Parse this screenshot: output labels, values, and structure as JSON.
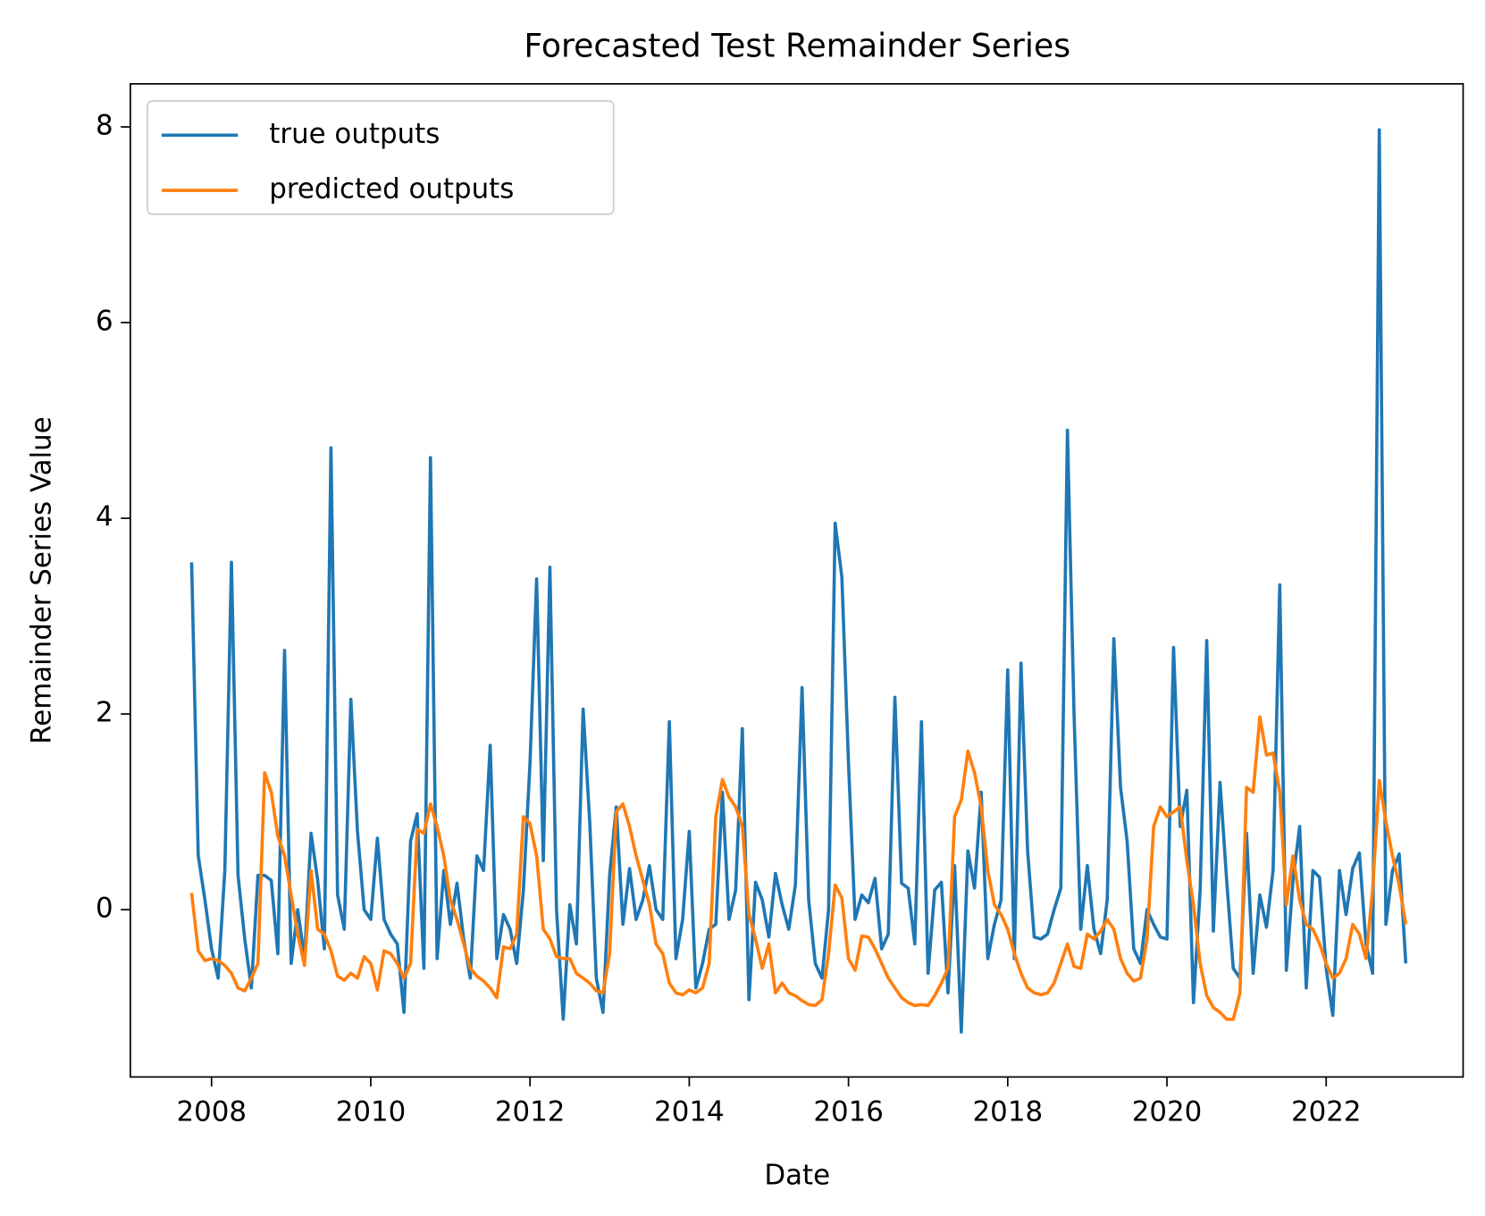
{
  "chart_data": {
    "type": "line",
    "title": "Forecasted Test Remainder Series",
    "xlabel": "Date",
    "ylabel": "Remainder Series Value",
    "x": [
      2007.75,
      2007.833,
      2007.917,
      2008,
      2008.083,
      2008.167,
      2008.25,
      2008.333,
      2008.417,
      2008.5,
      2008.583,
      2008.667,
      2008.75,
      2008.833,
      2008.917,
      2009,
      2009.083,
      2009.167,
      2009.25,
      2009.333,
      2009.417,
      2009.5,
      2009.583,
      2009.667,
      2009.75,
      2009.833,
      2009.917,
      2010,
      2010.083,
      2010.167,
      2010.25,
      2010.333,
      2010.417,
      2010.5,
      2010.583,
      2010.667,
      2010.75,
      2010.833,
      2010.917,
      2011,
      2011.083,
      2011.167,
      2011.25,
      2011.333,
      2011.417,
      2011.5,
      2011.583,
      2011.667,
      2011.75,
      2011.833,
      2011.917,
      2012,
      2012.083,
      2012.167,
      2012.25,
      2012.333,
      2012.417,
      2012.5,
      2012.583,
      2012.667,
      2012.75,
      2012.833,
      2012.917,
      2013,
      2013.083,
      2013.167,
      2013.25,
      2013.333,
      2013.417,
      2013.5,
      2013.583,
      2013.667,
      2013.75,
      2013.833,
      2013.917,
      2014,
      2014.083,
      2014.167,
      2014.25,
      2014.333,
      2014.417,
      2014.5,
      2014.583,
      2014.667,
      2014.75,
      2014.833,
      2014.917,
      2015,
      2015.083,
      2015.167,
      2015.25,
      2015.333,
      2015.417,
      2015.5,
      2015.583,
      2015.667,
      2015.75,
      2015.833,
      2015.917,
      2016,
      2016.083,
      2016.167,
      2016.25,
      2016.333,
      2016.417,
      2016.5,
      2016.583,
      2016.667,
      2016.75,
      2016.833,
      2016.917,
      2017,
      2017.083,
      2017.167,
      2017.25,
      2017.333,
      2017.417,
      2017.5,
      2017.583,
      2017.667,
      2017.75,
      2017.833,
      2017.917,
      2018,
      2018.083,
      2018.167,
      2018.25,
      2018.333,
      2018.417,
      2018.5,
      2018.583,
      2018.667,
      2018.75,
      2018.833,
      2018.917,
      2019,
      2019.083,
      2019.167,
      2019.25,
      2019.333,
      2019.417,
      2019.5,
      2019.583,
      2019.667,
      2019.75,
      2019.833,
      2019.917,
      2020,
      2020.083,
      2020.167,
      2020.25,
      2020.333,
      2020.417,
      2020.5,
      2020.583,
      2020.667,
      2020.75,
      2020.833,
      2020.917,
      2021,
      2021.083,
      2021.167,
      2021.25,
      2021.333,
      2021.417,
      2021.5,
      2021.583,
      2021.667,
      2021.75,
      2021.833,
      2021.917,
      2022,
      2022.083,
      2022.167,
      2022.25,
      2022.333,
      2022.417,
      2022.5,
      2022.583,
      2022.667,
      2022.75,
      2022.833,
      2022.917,
      2023
    ],
    "series": [
      {
        "name": "true outputs",
        "color": "#1f77b4",
        "values": [
          3.55,
          0.55,
          0.1,
          -0.4,
          -0.7,
          0.4,
          3.55,
          0.35,
          -0.3,
          -0.8,
          0.35,
          0.35,
          0.3,
          -0.45,
          2.65,
          -0.55,
          0.0,
          -0.5,
          0.78,
          0.3,
          -0.4,
          4.72,
          0.15,
          -0.2,
          2.15,
          0.8,
          0.0,
          -0.1,
          0.73,
          -0.1,
          -0.25,
          -0.35,
          -1.05,
          0.7,
          0.98,
          -0.6,
          4.62,
          -0.5,
          0.4,
          -0.15,
          0.27,
          -0.3,
          -0.7,
          0.55,
          0.4,
          1.68,
          -0.5,
          -0.05,
          -0.2,
          -0.55,
          0.2,
          1.5,
          3.38,
          0.5,
          3.5,
          0.0,
          -1.12,
          0.05,
          -0.35,
          2.05,
          0.9,
          -0.7,
          -1.05,
          0.35,
          1.05,
          -0.15,
          0.42,
          -0.1,
          0.1,
          0.45,
          0.0,
          -0.1,
          1.92,
          -0.5,
          -0.1,
          0.8,
          -0.8,
          -0.55,
          -0.2,
          -0.15,
          1.2,
          -0.1,
          0.2,
          1.85,
          -0.92,
          0.28,
          0.1,
          -0.28,
          0.37,
          0.05,
          -0.2,
          0.25,
          2.27,
          0.1,
          -0.55,
          -0.7,
          0.0,
          3.95,
          3.4,
          1.5,
          -0.1,
          0.15,
          0.07,
          0.32,
          -0.4,
          -0.25,
          2.17,
          0.27,
          0.22,
          -0.35,
          1.92,
          -0.65,
          0.2,
          0.28,
          -0.85,
          0.45,
          -1.25,
          0.6,
          0.22,
          1.2,
          -0.5,
          -0.15,
          0.1,
          2.45,
          -0.5,
          2.52,
          0.6,
          -0.28,
          -0.3,
          -0.25,
          0.0,
          0.22,
          4.9,
          2.0,
          -0.2,
          0.45,
          -0.2,
          -0.45,
          0.1,
          2.77,
          1.25,
          0.7,
          -0.4,
          -0.55,
          0.0,
          -0.15,
          -0.28,
          -0.3,
          2.68,
          0.85,
          1.22,
          -0.95,
          0.2,
          2.75,
          -0.22,
          1.3,
          0.3,
          -0.6,
          -0.7,
          0.78,
          -0.65,
          0.15,
          -0.18,
          0.4,
          3.32,
          -0.62,
          0.3,
          0.85,
          -0.8,
          0.4,
          0.33,
          -0.6,
          -1.08,
          0.4,
          -0.05,
          0.42,
          0.58,
          -0.35,
          -0.65,
          7.97,
          -0.15,
          0.4,
          0.57,
          -0.55
        ]
      },
      {
        "name": "predicted outputs",
        "color": "#ff7f0e",
        "values": [
          0.17,
          -0.42,
          -0.52,
          -0.5,
          -0.52,
          -0.57,
          -0.65,
          -0.8,
          -0.83,
          -0.7,
          -0.55,
          1.4,
          1.2,
          0.75,
          0.55,
          0.15,
          -0.25,
          -0.57,
          0.4,
          -0.2,
          -0.25,
          -0.42,
          -0.68,
          -0.72,
          -0.65,
          -0.7,
          -0.48,
          -0.55,
          -0.82,
          -0.42,
          -0.45,
          -0.55,
          -0.7,
          -0.55,
          0.82,
          0.78,
          1.08,
          0.85,
          0.55,
          0.1,
          -0.1,
          -0.35,
          -0.6,
          -0.68,
          -0.73,
          -0.8,
          -0.9,
          -0.38,
          -0.4,
          -0.25,
          0.95,
          0.88,
          0.55,
          -0.2,
          -0.3,
          -0.48,
          -0.5,
          -0.5,
          -0.65,
          -0.7,
          -0.75,
          -0.83,
          -0.85,
          -0.45,
          1.0,
          1.08,
          0.85,
          0.55,
          0.3,
          0.05,
          -0.35,
          -0.45,
          -0.75,
          -0.85,
          -0.87,
          -0.82,
          -0.85,
          -0.8,
          -0.55,
          0.95,
          1.33,
          1.15,
          1.05,
          0.85,
          -0.05,
          -0.3,
          -0.6,
          -0.35,
          -0.85,
          -0.75,
          -0.85,
          -0.88,
          -0.93,
          -0.97,
          -0.98,
          -0.92,
          -0.45,
          0.25,
          0.12,
          -0.5,
          -0.62,
          -0.27,
          -0.28,
          -0.4,
          -0.55,
          -0.7,
          -0.8,
          -0.9,
          -0.95,
          -0.98,
          -0.97,
          -0.98,
          -0.88,
          -0.75,
          -0.6,
          0.95,
          1.12,
          1.62,
          1.4,
          1.05,
          0.4,
          0.05,
          -0.05,
          -0.2,
          -0.45,
          -0.65,
          -0.8,
          -0.85,
          -0.87,
          -0.85,
          -0.75,
          -0.55,
          -0.35,
          -0.58,
          -0.6,
          -0.25,
          -0.3,
          -0.22,
          -0.1,
          -0.2,
          -0.5,
          -0.65,
          -0.73,
          -0.7,
          -0.3,
          0.85,
          1.05,
          0.95,
          1.0,
          1.05,
          0.5,
          0.05,
          -0.55,
          -0.88,
          -1.0,
          -1.05,
          -1.12,
          -1.12,
          -0.85,
          1.25,
          1.2,
          1.97,
          1.58,
          1.6,
          1.2,
          0.05,
          0.55,
          0.1,
          -0.15,
          -0.2,
          -0.35,
          -0.55,
          -0.7,
          -0.65,
          -0.5,
          -0.15,
          -0.25,
          -0.5,
          0.2,
          1.32,
          0.9,
          0.55,
          0.25,
          -0.15
        ]
      }
    ],
    "xlim": [
      2006.98,
      2023.72
    ],
    "ylim": [
      -1.71,
      8.44
    ],
    "xticks": [
      2008,
      2010,
      2012,
      2014,
      2016,
      2018,
      2020,
      2022
    ],
    "yticks": [
      0,
      2,
      4,
      6,
      8
    ],
    "grid": false,
    "legend": "upper left"
  }
}
